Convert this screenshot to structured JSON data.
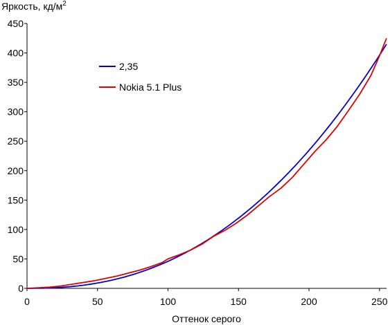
{
  "chart_data": {
    "type": "line",
    "ylabel": "Яркость, кд/м",
    "ylabel_superscript": "2",
    "xlabel": "Оттенок серого",
    "xlim": [
      0,
      255
    ],
    "ylim": [
      0,
      450
    ],
    "xticks": [
      0,
      50,
      100,
      150,
      200,
      250
    ],
    "yticks": [
      0,
      50,
      100,
      150,
      200,
      250,
      300,
      350,
      400,
      450
    ],
    "grid": false,
    "legend_position": "upper-left",
    "series": [
      {
        "name": "2,35",
        "color": "#0000cc",
        "gamma": 2.35,
        "max": 415
      },
      {
        "name": "Nokia 5.1 Plus",
        "color": "#dd0000",
        "points": [
          [
            0,
            0
          ],
          [
            8,
            1
          ],
          [
            16,
            2
          ],
          [
            24,
            4
          ],
          [
            32,
            7
          ],
          [
            40,
            10
          ],
          [
            48,
            13
          ],
          [
            56,
            17
          ],
          [
            64,
            21
          ],
          [
            72,
            26
          ],
          [
            80,
            31
          ],
          [
            88,
            37
          ],
          [
            96,
            44
          ],
          [
            100,
            50
          ],
          [
            108,
            57
          ],
          [
            116,
            65
          ],
          [
            124,
            75
          ],
          [
            132,
            88
          ],
          [
            140,
            98
          ],
          [
            148,
            110
          ],
          [
            156,
            124
          ],
          [
            164,
            140
          ],
          [
            172,
            156
          ],
          [
            180,
            170
          ],
          [
            188,
            188
          ],
          [
            196,
            210
          ],
          [
            204,
            232
          ],
          [
            212,
            252
          ],
          [
            220,
            275
          ],
          [
            228,
            302
          ],
          [
            236,
            330
          ],
          [
            244,
            362
          ],
          [
            250,
            395
          ],
          [
            255,
            425
          ]
        ]
      }
    ]
  }
}
